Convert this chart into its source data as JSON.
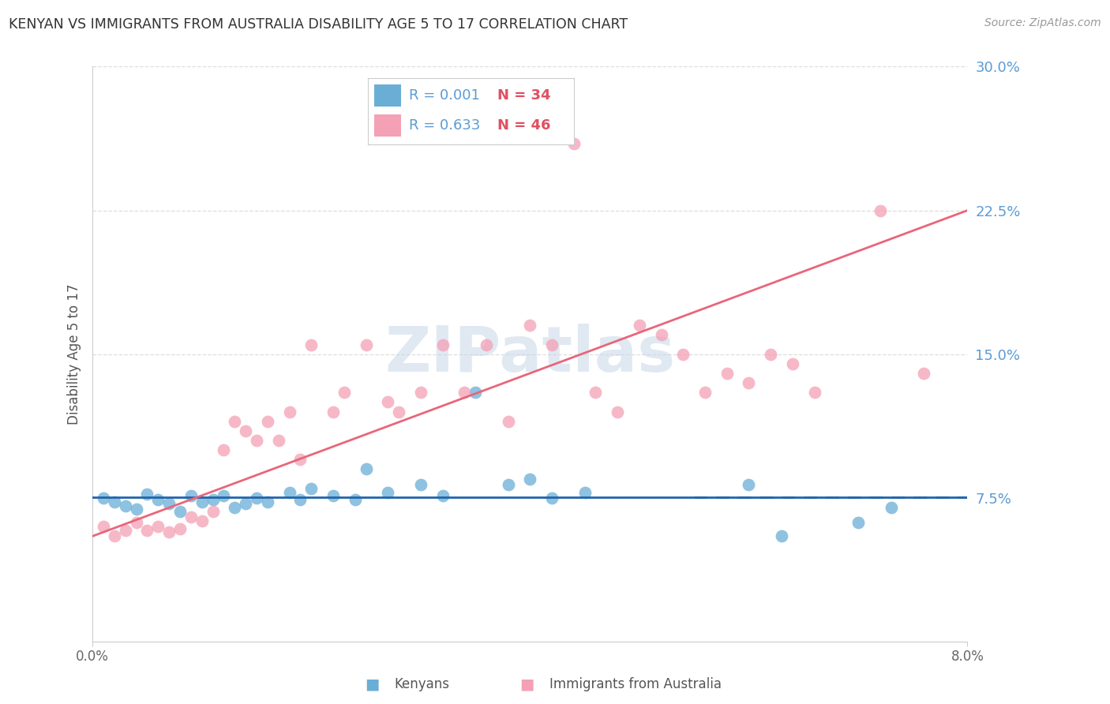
{
  "title": "KENYAN VS IMMIGRANTS FROM AUSTRALIA DISABILITY AGE 5 TO 17 CORRELATION CHART",
  "source": "Source: ZipAtlas.com",
  "ylabel": "Disability Age 5 to 17",
  "xlabel_kenyan": "Kenyans",
  "xlabel_immigrant": "Immigrants from Australia",
  "xmin": 0.0,
  "xmax": 0.08,
  "ymin": 0.0,
  "ymax": 0.3,
  "yticks": [
    0.075,
    0.15,
    0.225,
    0.3
  ],
  "ytick_labels": [
    "7.5%",
    "15.0%",
    "22.5%",
    "30.0%"
  ],
  "legend_kenyan_R": "R = 0.001",
  "legend_kenyan_N": "N = 34",
  "legend_immigrant_R": "R = 0.633",
  "legend_immigrant_N": "N = 46",
  "kenyan_color": "#6aaed6",
  "immigrant_color": "#f4a0b5",
  "kenyan_line_color": "#2166ac",
  "immigrant_line_color": "#e8667a",
  "text_blue": "#5b9bd5",
  "text_red": "#e05060",
  "watermark_color": "#c8d8e8",
  "kenyan_scatter_x": [
    0.001,
    0.002,
    0.003,
    0.004,
    0.005,
    0.006,
    0.007,
    0.008,
    0.009,
    0.01,
    0.011,
    0.012,
    0.013,
    0.014,
    0.015,
    0.016,
    0.018,
    0.019,
    0.02,
    0.022,
    0.024,
    0.025,
    0.027,
    0.03,
    0.032,
    0.035,
    0.038,
    0.04,
    0.042,
    0.045,
    0.06,
    0.063,
    0.07,
    0.073
  ],
  "kenyan_scatter_y": [
    0.075,
    0.073,
    0.071,
    0.069,
    0.077,
    0.074,
    0.072,
    0.068,
    0.076,
    0.073,
    0.074,
    0.076,
    0.07,
    0.072,
    0.075,
    0.073,
    0.078,
    0.074,
    0.08,
    0.076,
    0.074,
    0.09,
    0.078,
    0.082,
    0.076,
    0.13,
    0.082,
    0.085,
    0.075,
    0.078,
    0.082,
    0.055,
    0.062,
    0.07
  ],
  "immigrant_scatter_x": [
    0.001,
    0.002,
    0.003,
    0.004,
    0.005,
    0.006,
    0.007,
    0.008,
    0.009,
    0.01,
    0.011,
    0.012,
    0.013,
    0.014,
    0.015,
    0.016,
    0.017,
    0.018,
    0.019,
    0.02,
    0.022,
    0.023,
    0.025,
    0.027,
    0.028,
    0.03,
    0.032,
    0.034,
    0.036,
    0.038,
    0.04,
    0.042,
    0.044,
    0.046,
    0.048,
    0.05,
    0.052,
    0.054,
    0.056,
    0.058,
    0.06,
    0.062,
    0.064,
    0.066,
    0.072,
    0.076
  ],
  "immigrant_scatter_y": [
    0.06,
    0.055,
    0.058,
    0.062,
    0.058,
    0.06,
    0.057,
    0.059,
    0.065,
    0.063,
    0.068,
    0.1,
    0.115,
    0.11,
    0.105,
    0.115,
    0.105,
    0.12,
    0.095,
    0.155,
    0.12,
    0.13,
    0.155,
    0.125,
    0.12,
    0.13,
    0.155,
    0.13,
    0.155,
    0.115,
    0.165,
    0.155,
    0.26,
    0.13,
    0.12,
    0.165,
    0.16,
    0.15,
    0.13,
    0.14,
    0.135,
    0.15,
    0.145,
    0.13,
    0.225,
    0.14
  ],
  "background_color": "#ffffff",
  "grid_color": "#dddddd",
  "kenyan_line_y0": 0.0755,
  "kenyan_line_y1": 0.0755,
  "immigrant_line_y0": 0.055,
  "immigrant_line_y1": 0.225
}
